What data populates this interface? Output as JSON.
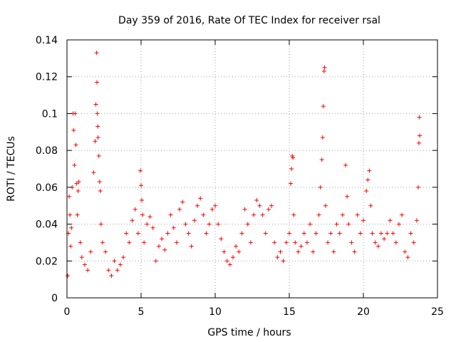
{
  "chart_data": {
    "type": "scatter",
    "title": "Day 359 of 2016, Rate Of TEC Index for receiver rsal",
    "xlabel": "GPS time / hours",
    "ylabel": "ROTI / TECUs",
    "xlim": [
      0,
      25
    ],
    "ylim": [
      0,
      0.14
    ],
    "xticks": [
      0,
      5,
      10,
      15,
      20,
      25
    ],
    "xtick_labels": [
      "0",
      "5",
      "10",
      "15",
      "20",
      "25"
    ],
    "yticks": [
      0,
      0.02,
      0.04,
      0.06,
      0.08,
      0.1,
      0.12,
      0.14
    ],
    "ytick_labels": [
      "0",
      "0.02",
      "0.04",
      "0.06",
      "0.08",
      "0.1",
      "0.12",
      "0.14"
    ],
    "grid": true,
    "marker": "+",
    "series": [
      {
        "name": "ROTI",
        "color": "#ff0000",
        "points": [
          [
            0.05,
            0.012
          ],
          [
            0.1,
            0.035
          ],
          [
            0.15,
            0.055
          ],
          [
            0.2,
            0.045
          ],
          [
            0.25,
            0.028
          ],
          [
            0.3,
            0.038
          ],
          [
            0.35,
            0.06
          ],
          [
            0.4,
            0.1
          ],
          [
            0.45,
            0.091
          ],
          [
            0.5,
            0.072
          ],
          [
            0.55,
            0.1
          ],
          [
            0.6,
            0.083
          ],
          [
            0.65,
            0.062
          ],
          [
            0.7,
            0.045
          ],
          [
            0.75,
            0.058
          ],
          [
            0.8,
            0.063
          ],
          [
            0.9,
            0.03
          ],
          [
            1.0,
            0.022
          ],
          [
            1.2,
            0.018
          ],
          [
            1.4,
            0.015
          ],
          [
            1.6,
            0.025
          ],
          [
            1.8,
            0.068
          ],
          [
            1.9,
            0.085
          ],
          [
            1.95,
            0.105
          ],
          [
            2.0,
            0.133
          ],
          [
            2.02,
            0.117
          ],
          [
            2.05,
            0.1
          ],
          [
            2.08,
            0.093
          ],
          [
            2.1,
            0.087
          ],
          [
            2.15,
            0.077
          ],
          [
            2.2,
            0.063
          ],
          [
            2.25,
            0.058
          ],
          [
            2.3,
            0.04
          ],
          [
            2.4,
            0.03
          ],
          [
            2.6,
            0.025
          ],
          [
            2.8,
            0.015
          ],
          [
            3.0,
            0.012
          ],
          [
            3.2,
            0.02
          ],
          [
            3.4,
            0.015
          ],
          [
            3.6,
            0.018
          ],
          [
            3.8,
            0.022
          ],
          [
            4.0,
            0.035
          ],
          [
            4.2,
            0.03
          ],
          [
            4.4,
            0.042
          ],
          [
            4.6,
            0.048
          ],
          [
            4.8,
            0.035
          ],
          [
            4.95,
            0.069
          ],
          [
            5.0,
            0.061
          ],
          [
            5.05,
            0.053
          ],
          [
            5.1,
            0.045
          ],
          [
            5.2,
            0.03
          ],
          [
            5.4,
            0.04
          ],
          [
            5.6,
            0.044
          ],
          [
            5.8,
            0.038
          ],
          [
            6.0,
            0.02
          ],
          [
            6.2,
            0.028
          ],
          [
            6.4,
            0.032
          ],
          [
            6.6,
            0.026
          ],
          [
            6.8,
            0.035
          ],
          [
            7.0,
            0.045
          ],
          [
            7.2,
            0.038
          ],
          [
            7.4,
            0.03
          ],
          [
            7.6,
            0.048
          ],
          [
            7.8,
            0.052
          ],
          [
            8.0,
            0.04
          ],
          [
            8.2,
            0.035
          ],
          [
            8.4,
            0.028
          ],
          [
            8.6,
            0.042
          ],
          [
            8.8,
            0.05
          ],
          [
            9.0,
            0.054
          ],
          [
            9.2,
            0.045
          ],
          [
            9.4,
            0.035
          ],
          [
            9.6,
            0.04
          ],
          [
            9.8,
            0.048
          ],
          [
            10.0,
            0.05
          ],
          [
            10.2,
            0.04
          ],
          [
            10.4,
            0.032
          ],
          [
            10.6,
            0.025
          ],
          [
            10.8,
            0.02
          ],
          [
            11.0,
            0.018
          ],
          [
            11.2,
            0.022
          ],
          [
            11.4,
            0.028
          ],
          [
            11.6,
            0.025
          ],
          [
            11.8,
            0.035
          ],
          [
            12.0,
            0.048
          ],
          [
            12.2,
            0.04
          ],
          [
            12.4,
            0.03
          ],
          [
            12.6,
            0.045
          ],
          [
            12.8,
            0.053
          ],
          [
            13.0,
            0.05
          ],
          [
            13.2,
            0.045
          ],
          [
            13.4,
            0.035
          ],
          [
            13.6,
            0.048
          ],
          [
            13.8,
            0.05
          ],
          [
            14.0,
            0.03
          ],
          [
            14.2,
            0.022
          ],
          [
            14.4,
            0.025
          ],
          [
            14.6,
            0.02
          ],
          [
            14.8,
            0.03
          ],
          [
            15.0,
            0.035
          ],
          [
            15.1,
            0.062
          ],
          [
            15.15,
            0.07
          ],
          [
            15.2,
            0.077
          ],
          [
            15.25,
            0.076
          ],
          [
            15.3,
            0.045
          ],
          [
            15.4,
            0.03
          ],
          [
            15.6,
            0.025
          ],
          [
            15.8,
            0.028
          ],
          [
            16.0,
            0.035
          ],
          [
            16.2,
            0.03
          ],
          [
            16.4,
            0.04
          ],
          [
            16.6,
            0.025
          ],
          [
            16.8,
            0.035
          ],
          [
            17.0,
            0.045
          ],
          [
            17.1,
            0.06
          ],
          [
            17.2,
            0.075
          ],
          [
            17.25,
            0.087
          ],
          [
            17.3,
            0.104
          ],
          [
            17.35,
            0.123
          ],
          [
            17.38,
            0.125
          ],
          [
            17.45,
            0.05
          ],
          [
            17.6,
            0.03
          ],
          [
            17.8,
            0.035
          ],
          [
            18.0,
            0.025
          ],
          [
            18.2,
            0.04
          ],
          [
            18.4,
            0.035
          ],
          [
            18.6,
            0.045
          ],
          [
            18.8,
            0.072
          ],
          [
            18.9,
            0.055
          ],
          [
            19.0,
            0.04
          ],
          [
            19.2,
            0.03
          ],
          [
            19.4,
            0.025
          ],
          [
            19.6,
            0.045
          ],
          [
            19.8,
            0.035
          ],
          [
            20.0,
            0.042
          ],
          [
            20.2,
            0.058
          ],
          [
            20.3,
            0.064
          ],
          [
            20.4,
            0.069
          ],
          [
            20.5,
            0.05
          ],
          [
            20.6,
            0.035
          ],
          [
            20.8,
            0.03
          ],
          [
            21.0,
            0.028
          ],
          [
            21.2,
            0.035
          ],
          [
            21.4,
            0.032
          ],
          [
            21.6,
            0.035
          ],
          [
            21.8,
            0.042
          ],
          [
            22.0,
            0.035
          ],
          [
            22.2,
            0.03
          ],
          [
            22.4,
            0.04
          ],
          [
            22.6,
            0.045
          ],
          [
            22.8,
            0.025
          ],
          [
            23.0,
            0.022
          ],
          [
            23.2,
            0.035
          ],
          [
            23.4,
            0.03
          ],
          [
            23.6,
            0.042
          ],
          [
            23.7,
            0.06
          ],
          [
            23.75,
            0.084
          ],
          [
            23.78,
            0.098
          ],
          [
            23.8,
            0.088
          ]
        ]
      }
    ]
  }
}
